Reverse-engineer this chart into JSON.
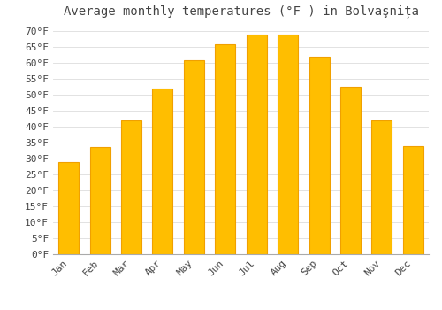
{
  "title": "Average monthly temperatures (°F ) in Bolvaşnița",
  "months": [
    "Jan",
    "Feb",
    "Mar",
    "Apr",
    "May",
    "Jun",
    "Jul",
    "Aug",
    "Sep",
    "Oct",
    "Nov",
    "Dec"
  ],
  "values": [
    29.0,
    33.5,
    42.0,
    52.0,
    61.0,
    66.0,
    69.0,
    69.0,
    62.0,
    52.5,
    42.0,
    34.0
  ],
  "bar_color": "#FFBE00",
  "bar_edge_color": "#F0A000",
  "background_color": "#FFFFFF",
  "grid_color": "#DDDDDD",
  "text_color": "#444444",
  "yticks": [
    0,
    5,
    10,
    15,
    20,
    25,
    30,
    35,
    40,
    45,
    50,
    55,
    60,
    65,
    70
  ],
  "ylim": [
    0,
    72
  ],
  "title_fontsize": 10,
  "tick_fontsize": 8
}
